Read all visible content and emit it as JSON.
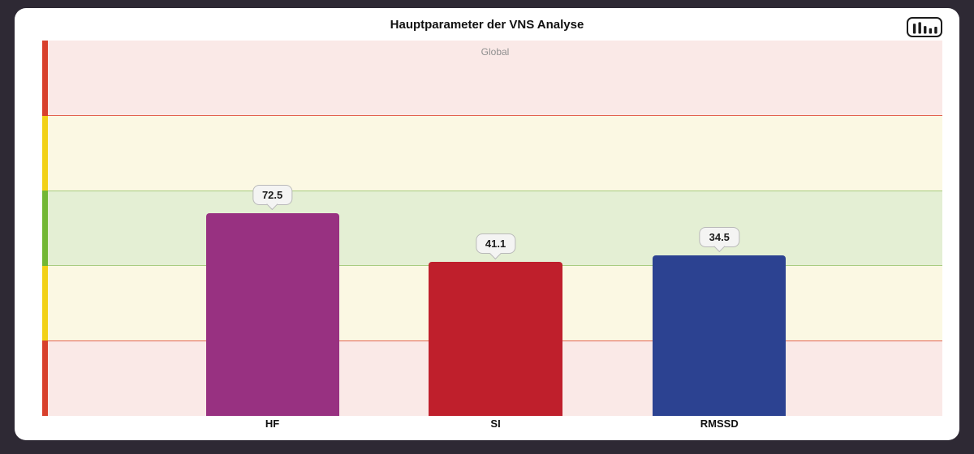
{
  "card": {
    "title": "Hauptparameter der VNS Analyse",
    "toolbar": {
      "chart_type_icon": "bar-chart-icon"
    }
  },
  "chart_data": {
    "type": "bar",
    "title": "Hauptparameter der VNS Analyse",
    "region_label": "Global",
    "categories": [
      "HF",
      "SI",
      "RMSSD"
    ],
    "values": [
      72.5,
      41.1,
      34.5
    ],
    "series": [
      {
        "name": "HF",
        "value": 72.5,
        "label": "72.5",
        "color": "#983181",
        "height_pct": 54.0,
        "center_pct": 25.1
      },
      {
        "name": "SI",
        "value": 41.1,
        "label": "41.1",
        "color": "#bf1f2c",
        "height_pct": 41.0,
        "center_pct": 50.05
      },
      {
        "name": "RMSSD",
        "value": 34.5,
        "label": "34.5",
        "color": "#2c4291",
        "height_pct": 42.8,
        "center_pct": 75.07
      }
    ],
    "bar_width_pct": 14.9,
    "xlabel": "",
    "ylabel": "",
    "legend_position": "none",
    "grid": "zone-bands",
    "bands": [
      {
        "zone": "red-high",
        "fill": "#fae9e7",
        "strip": "#d8402c",
        "divider": null
      },
      {
        "zone": "yellow-high",
        "fill": "#fbf8e3",
        "strip": "#f2d117",
        "divider": "#e2624f"
      },
      {
        "zone": "green",
        "fill": "#e4efd4",
        "strip": "#72b734",
        "divider": "#a8cc80"
      },
      {
        "zone": "yellow-low",
        "fill": "#fbf8e3",
        "strip": "#f2d117",
        "divider": "#a8cc80"
      },
      {
        "zone": "red-low",
        "fill": "#fae9e7",
        "strip": "#d8402c",
        "divider": "#e2624f"
      }
    ],
    "tooltip_style": {
      "background": "#f4f4f3",
      "border": "#b9b9b9"
    }
  }
}
